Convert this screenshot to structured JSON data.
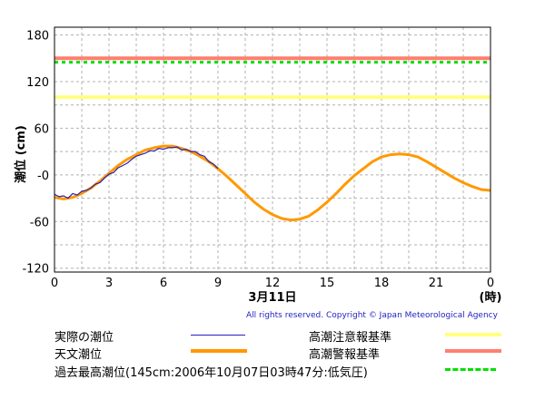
{
  "chart_data": {
    "type": "line",
    "ylabel": "潮位 (cm)",
    "ylim": [
      -125,
      190
    ],
    "xlim": [
      0,
      24
    ],
    "yticks": [
      "180",
      "120",
      "60",
      "-0",
      "-60",
      "-120"
    ],
    "ytick_values": [
      180,
      120,
      60,
      0,
      -60,
      -120
    ],
    "xticks": [
      "0",
      "3",
      "6",
      "9",
      "12",
      "15",
      "18",
      "21",
      "0"
    ],
    "xtick_values": [
      0,
      3,
      6,
      9,
      12,
      15,
      18,
      21,
      24
    ],
    "xlabel_date": "3月11日",
    "xlabel_unit": "(時)",
    "grid": true,
    "thresholds": [
      {
        "name": "高潮注意報基準",
        "value": 100,
        "color": "#ffff80",
        "style": "solid"
      },
      {
        "name": "高潮警報基準",
        "value": 150,
        "color": "#ff7f6f",
        "style": "solid"
      },
      {
        "name": "過去最高潮位(145cm:2006年10月07日03時47分:低気圧)",
        "value": 145,
        "color": "#00e000",
        "style": "dashed"
      }
    ],
    "series": [
      {
        "name": "実際の潮位",
        "color": "#2a1fb8",
        "x": [
          0.0,
          0.25,
          0.5,
          0.75,
          1.0,
          1.25,
          1.5,
          1.75,
          2.0,
          2.25,
          2.5,
          2.75,
          3.0,
          3.25,
          3.5,
          3.75,
          4.0,
          4.25,
          4.5,
          4.75,
          5.0,
          5.25,
          5.5,
          5.75,
          6.0,
          6.25,
          6.5,
          6.75,
          7.0,
          7.25,
          7.5,
          7.75,
          8.0,
          8.25,
          8.5,
          8.75,
          9.0
        ],
        "y": [
          -25,
          -28,
          -27,
          -30,
          -24,
          -26,
          -21,
          -20,
          -17,
          -12,
          -10,
          -4,
          1,
          3,
          9,
          12,
          15,
          20,
          24,
          26,
          28,
          31,
          31,
          34,
          33,
          35,
          35,
          36,
          32,
          33,
          30,
          30,
          26,
          24,
          17,
          14,
          8
        ]
      },
      {
        "name": "天文潮位",
        "color": "#ff9900",
        "x": [
          0.0,
          0.5,
          1.0,
          1.5,
          2.0,
          2.5,
          3.0,
          3.5,
          4.0,
          4.5,
          5.0,
          5.5,
          6.0,
          6.5,
          7.0,
          7.5,
          8.0,
          8.5,
          9.0,
          9.5,
          10.0,
          10.5,
          11.0,
          11.5,
          12.0,
          12.5,
          13.0,
          13.5,
          14.0,
          14.5,
          15.0,
          15.5,
          16.0,
          16.5,
          17.0,
          17.5,
          18.0,
          18.5,
          19.0,
          19.5,
          20.0,
          20.5,
          21.0,
          21.5,
          22.0,
          22.5,
          23.0,
          23.5,
          24.0
        ],
        "y": [
          -29,
          -31,
          -29,
          -24,
          -17,
          -8,
          2,
          12,
          20,
          26,
          32,
          35,
          37,
          37,
          34,
          30,
          24,
          17,
          8,
          -2,
          -13,
          -24,
          -35,
          -44,
          -51,
          -56,
          -58,
          -57,
          -53,
          -45,
          -35,
          -24,
          -12,
          -1,
          8,
          17,
          23,
          26,
          27,
          26,
          23,
          17,
          10,
          3,
          -4,
          -10,
          -15,
          -19,
          -20
        ]
      }
    ]
  },
  "copyright": "All rights reserved. Copyright © Japan Meteorological Agency",
  "legend": {
    "actual": "実際の潮位",
    "astronomical": "天文潮位",
    "caution": "高潮注意報基準",
    "warning": "高潮警報基準",
    "record": "過去最高潮位(145cm:2006年10月07日03時47分:低気圧)"
  }
}
